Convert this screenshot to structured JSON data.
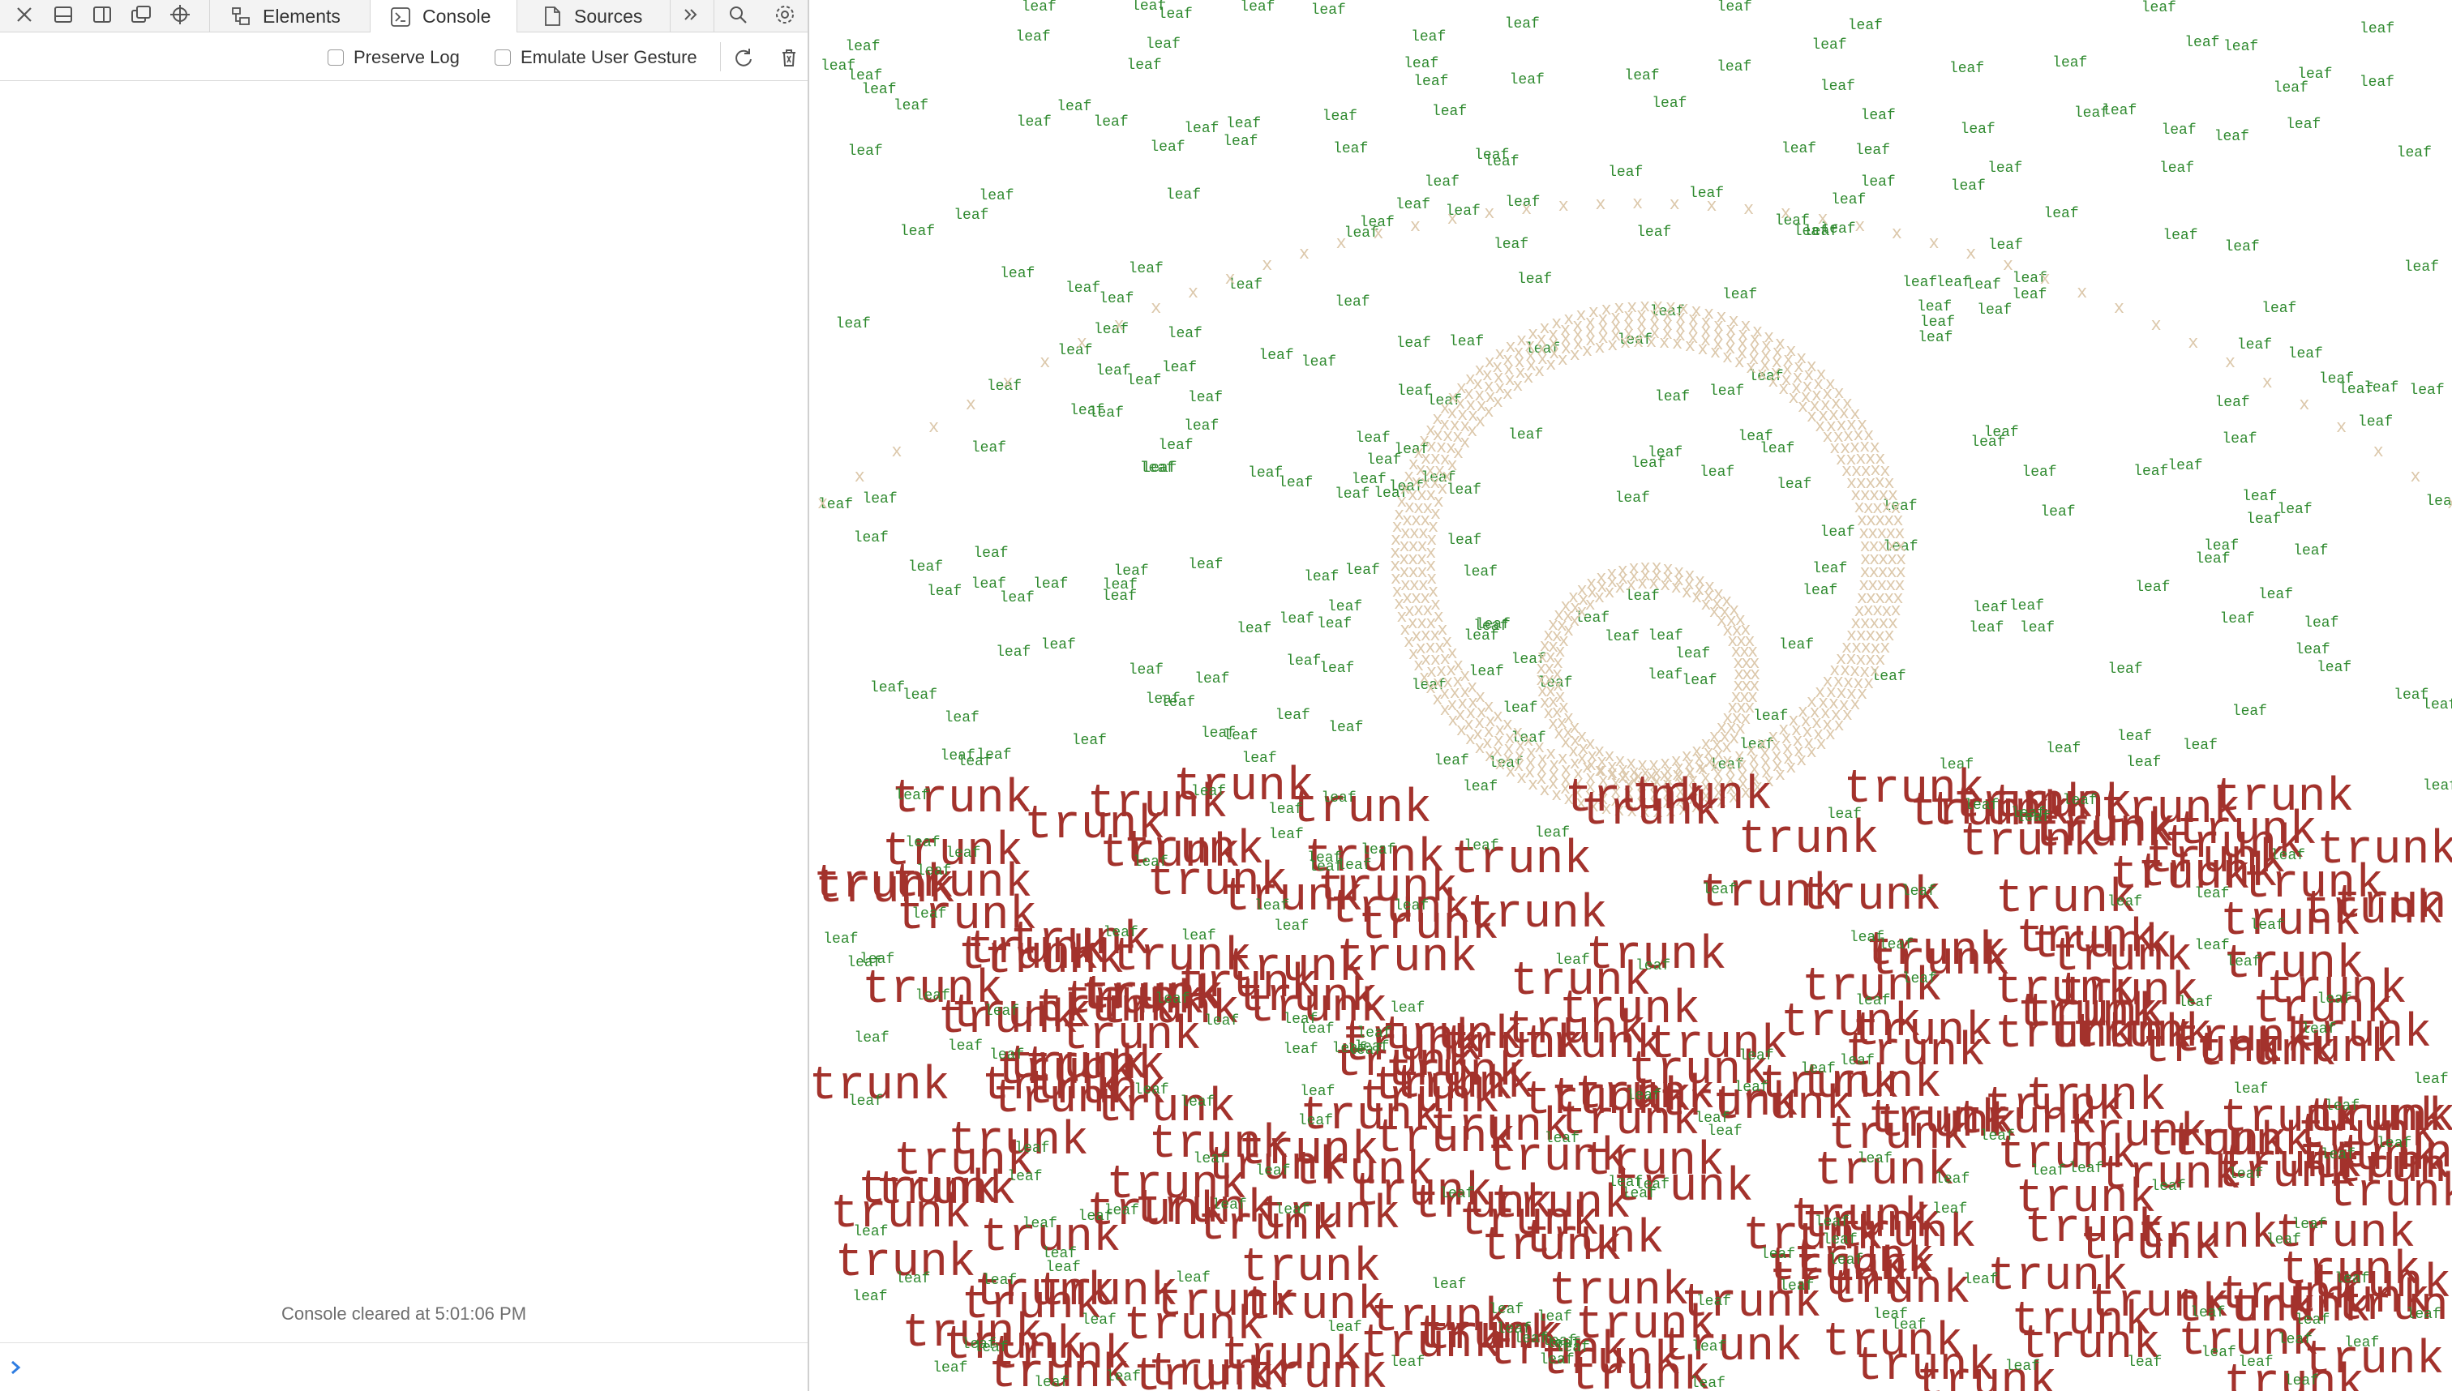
{
  "devtools": {
    "tabs": [
      {
        "label": "Elements",
        "icon": "elements-icon"
      },
      {
        "label": "Console",
        "icon": "console-icon",
        "selected": true
      },
      {
        "label": "Sources",
        "icon": "sources-icon"
      }
    ],
    "toolbar_icons": [
      "close-icon",
      "dock-bottom-icon",
      "dock-side-icon",
      "detach-window-icon",
      "inspect-target-icon"
    ],
    "filter": {
      "preserve_log": {
        "label": "Preserve Log",
        "checked": false
      },
      "emulate_gesture": {
        "label": "Emulate User Gesture",
        "checked": false
      }
    },
    "console_message": "Console cleared at 5:01:06 PM",
    "prompt_value": ""
  },
  "scene": {
    "leaf_word": "leaf",
    "trunk_word": "trunk",
    "mark_char": "x",
    "colors": {
      "leaf": "#2f8a2f",
      "trunk": "#a3322c",
      "mark": "#dcc8ab"
    }
  }
}
